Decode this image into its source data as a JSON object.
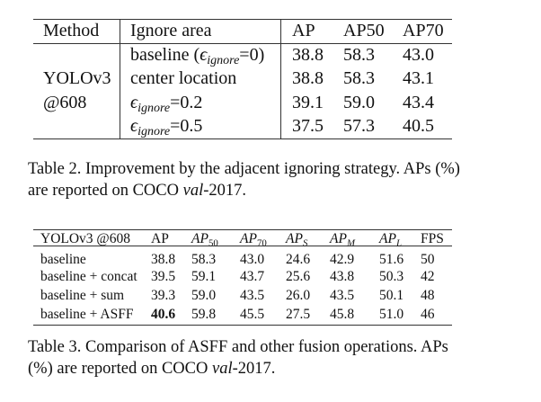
{
  "table2": {
    "headers": [
      "Method",
      "Ignore area",
      "AP",
      "AP50",
      "AP70"
    ],
    "method": [
      "YOLOv3",
      "@608"
    ],
    "rows": [
      {
        "area_prefix": "baseline (",
        "eps": "ϵ",
        "sub": "ignore",
        "area_suffix": "=0)",
        "ap": "38.8",
        "ap50": "58.3",
        "ap70": "43.0"
      },
      {
        "area_prefix": "center location",
        "eps": "",
        "sub": "",
        "area_suffix": "",
        "ap": "38.8",
        "ap50": "58.3",
        "ap70": "43.1"
      },
      {
        "area_prefix": "",
        "eps": "ϵ",
        "sub": "ignore",
        "area_suffix": "=0.2",
        "ap": "39.1",
        "ap50": "59.0",
        "ap70": "43.4"
      },
      {
        "area_prefix": "",
        "eps": "ϵ",
        "sub": "ignore",
        "area_suffix": "=0.5",
        "ap": "37.5",
        "ap50": "57.3",
        "ap70": "40.5"
      }
    ],
    "caption": [
      "Table 2. Improvement by the adjacent ignoring strategy. APs (%)",
      "are reported on COCO ",
      "val",
      "-2017."
    ]
  },
  "table3": {
    "headers": [
      "YOLOv3 @608",
      "AP",
      "AP",
      "50",
      "AP",
      "70",
      "AP",
      "S",
      "AP",
      "M",
      "AP",
      "L",
      "FPS"
    ],
    "rows": [
      [
        "baseline",
        "38.8",
        "58.3",
        "43.0",
        "24.6",
        "42.9",
        "51.6",
        "50"
      ],
      [
        "baseline + concat",
        "39.5",
        "59.1",
        "43.7",
        "25.6",
        "43.8",
        "50.3",
        "42"
      ],
      [
        "baseline + sum",
        "39.3",
        "59.0",
        "43.5",
        "26.0",
        "43.5",
        "50.1",
        "48"
      ],
      [
        "baseline + ASFF",
        "40.6",
        "59.8",
        "45.5",
        "27.5",
        "45.8",
        "51.0",
        "46"
      ]
    ],
    "caption": [
      "Table 3. Comparison of ASFF and other fusion operations. APs",
      "(%) are reported on COCO ",
      "val",
      "-2017."
    ]
  }
}
